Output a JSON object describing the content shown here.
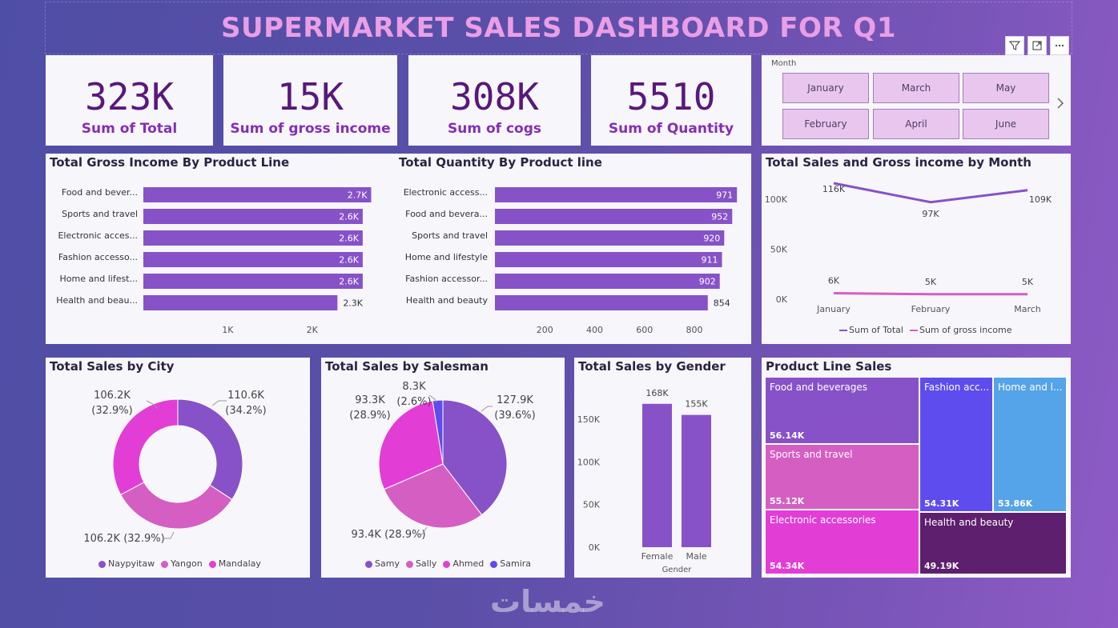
{
  "title": "SUPERMARKET SALES DASHBOARD FOR Q1",
  "kpis": [
    {
      "value": "323K",
      "label": "Sum of Total"
    },
    {
      "value": "15K",
      "label": "Sum of gross income"
    },
    {
      "value": "308K",
      "label": "Sum of cogs"
    },
    {
      "value": "5510",
      "label": "Sum of Quantity"
    }
  ],
  "slicer": {
    "title": "Month",
    "options": [
      "January",
      "March",
      "May",
      "February",
      "April",
      "June"
    ]
  },
  "colors": {
    "purple": "#8752c8",
    "pink": "#d55ec3",
    "magenta": "#e23ed6",
    "blue": "#5e4cef",
    "lightblue": "#55a3e9",
    "dark": "#5d1f6e"
  },
  "chart_data": [
    {
      "id": "gross_income_by_product",
      "type": "bar",
      "orientation": "horizontal",
      "title": "Total Gross Income By Product Line",
      "categories": [
        "Food and bever...",
        "Sports and travel",
        "Electronic acces...",
        "Fashion accesso...",
        "Home and lifest...",
        "Health and beau..."
      ],
      "values": [
        2.7,
        2.6,
        2.6,
        2.6,
        2.6,
        2.3
      ],
      "labels": [
        "2.7K",
        "2.6K",
        "2.6K",
        "2.6K",
        "2.6K",
        "2.3K"
      ],
      "xticks": [
        "1K",
        "2K"
      ],
      "xlim": [
        0,
        2.8
      ]
    },
    {
      "id": "quantity_by_product",
      "type": "bar",
      "orientation": "horizontal",
      "title": "Total Quantity By Product line",
      "categories": [
        "Electronic access...",
        "Food and bevera...",
        "Sports and travel",
        "Home and lifestyle",
        "Fashion accessor...",
        "Health and beauty"
      ],
      "values": [
        971,
        952,
        920,
        911,
        902,
        854
      ],
      "labels": [
        "971",
        "952",
        "920",
        "911",
        "902",
        "854"
      ],
      "xticks": [
        "200",
        "400",
        "600",
        "800"
      ],
      "xlim": [
        0,
        980
      ]
    },
    {
      "id": "sales_gross_by_month",
      "type": "line",
      "title": "Total Sales and Gross income by Month",
      "x": [
        "January",
        "February",
        "March"
      ],
      "series": [
        {
          "name": "Sum of Total",
          "values": [
            116,
            97,
            109
          ],
          "labels": [
            "116K",
            "97K",
            "109K"
          ]
        },
        {
          "name": "Sum of gross income",
          "values": [
            6,
            5,
            5
          ],
          "labels": [
            "6K",
            "5K",
            "5K"
          ]
        }
      ],
      "yticks": [
        "0K",
        "50K",
        "100K"
      ],
      "ylim": [
        0,
        130
      ]
    },
    {
      "id": "sales_by_city",
      "type": "pie",
      "donut": true,
      "title": "Total Sales by City",
      "categories": [
        "Naypyitaw",
        "Yangon",
        "Mandalay"
      ],
      "values": [
        110.6,
        106.2,
        106.2
      ],
      "labels": [
        "110.6K (34.2%)",
        "106.2K (32.9%)",
        "106.2K (32.9%)"
      ]
    },
    {
      "id": "sales_by_salesman",
      "type": "pie",
      "title": "Total Sales by Salesman",
      "categories": [
        "Samy",
        "Sally",
        "Ahmed",
        "Samira"
      ],
      "values": [
        127.9,
        93.4,
        93.3,
        8.3
      ],
      "labels": [
        "127.9K (39.6%)",
        "93.4K (28.9%)",
        "93.3K (28.9%)",
        "8.3K (2.6%)"
      ]
    },
    {
      "id": "sales_by_gender",
      "type": "bar",
      "title": "Total Sales by Gender",
      "categories": [
        "Female",
        "Male"
      ],
      "values": [
        168,
        155
      ],
      "labels": [
        "168K",
        "155K"
      ],
      "yticks": [
        "0K",
        "50K",
        "100K",
        "150K"
      ],
      "xlabel": "Gender",
      "ylim": [
        0,
        170
      ]
    },
    {
      "id": "product_line_sales",
      "type": "treemap",
      "title": "Product Line Sales",
      "categories": [
        "Food and beverages",
        "Sports and travel",
        "Electronic accessories",
        "Fashion acc...",
        "Home and l...",
        "Health and beauty"
      ],
      "labels": [
        "56.14K",
        "55.12K",
        "54.34K",
        "54.31K",
        "53.86K",
        "49.19K"
      ],
      "values": [
        56.14,
        55.12,
        54.34,
        54.31,
        53.86,
        49.19
      ]
    }
  ],
  "watermark": "خمسات"
}
